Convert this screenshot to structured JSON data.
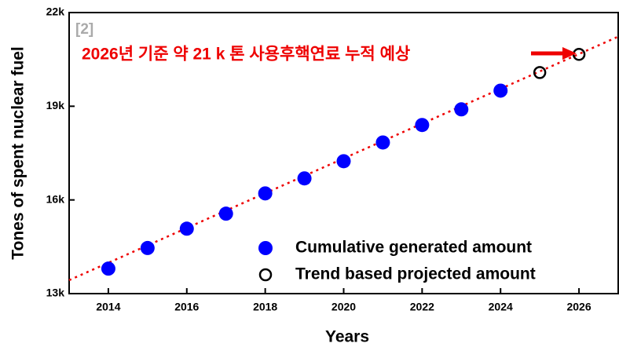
{
  "chart_data": {
    "type": "scatter",
    "x_label": "Years",
    "y_label": "Tones of spent nuclear fuel",
    "annotation": "2026년 기준 약 21 k 톤 사용후핵연료 누적 예상",
    "reference": "[2]",
    "annotation_color": "#ee0000",
    "xlim": [
      2013,
      2027
    ],
    "ylim": [
      13000,
      22000
    ],
    "xticks": [
      2014,
      2016,
      2018,
      2020,
      2022,
      2024,
      2026
    ],
    "yticks": [
      {
        "value": 13000,
        "label": "13k"
      },
      {
        "value": 16000,
        "label": "16k"
      },
      {
        "value": 19000,
        "label": "19k"
      },
      {
        "value": 22000,
        "label": "22k"
      }
    ],
    "series": [
      {
        "name": "Cumulative generated amount",
        "color": "#0000ff",
        "filled": true,
        "x": [
          2014,
          2015,
          2016,
          2017,
          2018,
          2019,
          2020,
          2021,
          2022,
          2023,
          2024
        ],
        "values": [
          13800,
          14460,
          15080,
          15560,
          16210,
          16690,
          17240,
          17840,
          18400,
          18900,
          19500
        ]
      },
      {
        "name": "Trend based projected amount",
        "color": "#000000",
        "filled": false,
        "x": [
          2025,
          2026
        ],
        "values": [
          20080,
          20660
        ]
      }
    ],
    "trend_line": {
      "color": "#ee0000",
      "x": [
        2013,
        2027
      ],
      "values": [
        13430,
        21230
      ]
    },
    "legend": "lower right"
  }
}
